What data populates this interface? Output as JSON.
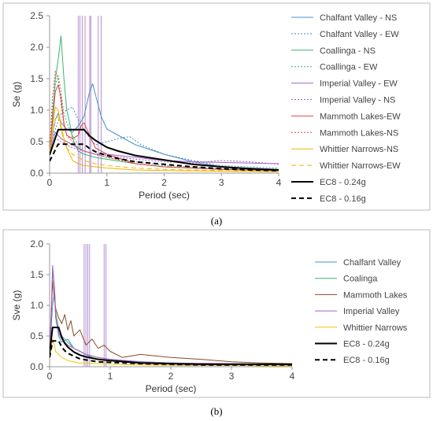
{
  "chart_data": [
    {
      "type": "line",
      "caption": "(a)",
      "xlabel": "Period (sec)",
      "ylabel": "Se (g)",
      "xlim": [
        0,
        4
      ],
      "ylim": [
        0,
        2.5
      ],
      "xticks": [
        "0",
        "1",
        "2",
        "3",
        "4"
      ],
      "yticks": [
        "0.0",
        "0.5",
        "1.0",
        "1.5",
        "2.0",
        "2.5"
      ],
      "grid": false,
      "legend_position": "right",
      "vertical_markers": [
        0.5,
        0.53,
        0.57,
        0.62,
        0.7,
        0.72,
        0.85,
        0.9
      ],
      "series": [
        {
          "name": "Chalfant Valley - NS",
          "color": "#4a90c8",
          "dash": "solid",
          "x": [
            0,
            0.05,
            0.1,
            0.15,
            0.2,
            0.3,
            0.4,
            0.5,
            0.6,
            0.7,
            0.75,
            0.8,
            0.9,
            1.0,
            1.2,
            1.5,
            2.0,
            2.5,
            3.0,
            3.5,
            4.0
          ],
          "y": [
            0.35,
            0.6,
            0.85,
            0.95,
            0.8,
            0.7,
            0.65,
            0.75,
            0.9,
            1.3,
            1.42,
            1.25,
            0.9,
            0.7,
            0.6,
            0.45,
            0.3,
            0.18,
            0.1,
            0.08,
            0.06
          ]
        },
        {
          "name": "Chalfant Valley - EW",
          "color": "#4a90c8",
          "dash": "dotted",
          "x": [
            0,
            0.05,
            0.1,
            0.2,
            0.3,
            0.4,
            0.5,
            0.6,
            0.7,
            0.8,
            1.0,
            1.2,
            1.4,
            1.6,
            2.0,
            2.5,
            3.0,
            3.5,
            4.0
          ],
          "y": [
            0.3,
            0.55,
            0.7,
            0.95,
            1.0,
            1.05,
            0.85,
            0.7,
            0.55,
            0.45,
            0.5,
            0.55,
            0.58,
            0.45,
            0.3,
            0.2,
            0.12,
            0.1,
            0.08
          ]
        },
        {
          "name": "Coallinga - NS",
          "color": "#3cb371",
          "dash": "solid",
          "x": [
            0,
            0.05,
            0.1,
            0.15,
            0.2,
            0.25,
            0.3,
            0.35,
            0.4,
            0.5,
            0.6,
            0.8,
            1.0,
            1.5,
            2.0,
            3.0,
            4.0
          ],
          "y": [
            0.3,
            0.9,
            1.5,
            1.8,
            2.18,
            1.5,
            1.0,
            0.8,
            0.55,
            0.35,
            0.3,
            0.25,
            0.22,
            0.15,
            0.1,
            0.06,
            0.04
          ]
        },
        {
          "name": "Coallinga - EW",
          "color": "#3cb371",
          "dash": "dotted",
          "x": [
            0,
            0.05,
            0.1,
            0.15,
            0.2,
            0.25,
            0.3,
            0.4,
            0.5,
            0.6,
            0.8,
            1.0,
            1.5,
            2.0,
            3.0,
            4.0
          ],
          "y": [
            0.3,
            1.0,
            1.4,
            1.55,
            1.3,
            0.95,
            0.8,
            0.6,
            0.45,
            0.35,
            0.3,
            0.25,
            0.18,
            0.12,
            0.07,
            0.05
          ]
        },
        {
          "name": "Imperial Valley - EW",
          "color": "#a560c8",
          "dash": "solid",
          "x": [
            0,
            0.05,
            0.1,
            0.2,
            0.3,
            0.4,
            0.5,
            0.6,
            0.8,
            1.0,
            1.5,
            2.0,
            2.5,
            3.0,
            3.5,
            4.0
          ],
          "y": [
            0.3,
            0.5,
            0.65,
            0.55,
            0.5,
            0.45,
            0.4,
            0.35,
            0.3,
            0.3,
            0.25,
            0.2,
            0.18,
            0.17,
            0.16,
            0.15
          ]
        },
        {
          "name": "Imperial Valley - NS",
          "color": "#a560c8",
          "dash": "dotted",
          "x": [
            0,
            0.05,
            0.1,
            0.2,
            0.3,
            0.4,
            0.5,
            0.6,
            0.8,
            1.0,
            1.5,
            2.0,
            2.5,
            3.0,
            3.5,
            4.0
          ],
          "y": [
            0.3,
            0.45,
            0.55,
            0.5,
            0.45,
            0.4,
            0.38,
            0.35,
            0.3,
            0.28,
            0.22,
            0.18,
            0.16,
            0.2,
            0.18,
            0.14
          ]
        },
        {
          "name": "Mammoth Lakes-EW",
          "color": "#e04848",
          "dash": "solid",
          "x": [
            0,
            0.05,
            0.1,
            0.15,
            0.2,
            0.25,
            0.3,
            0.4,
            0.5,
            0.55,
            0.6,
            0.7,
            0.8,
            1.0,
            1.5,
            2.0,
            3.0,
            4.0
          ],
          "y": [
            0.3,
            0.8,
            1.3,
            1.4,
            1.2,
            0.8,
            0.6,
            0.55,
            0.6,
            0.75,
            0.8,
            0.6,
            0.4,
            0.3,
            0.15,
            0.1,
            0.06,
            0.04
          ]
        },
        {
          "name": "Mammoth Lakes-NS",
          "color": "#e04848",
          "dash": "dotted",
          "x": [
            0,
            0.05,
            0.1,
            0.15,
            0.2,
            0.25,
            0.3,
            0.4,
            0.5,
            0.6,
            0.8,
            1.0,
            1.5,
            2.0,
            3.0,
            4.0
          ],
          "y": [
            0.35,
            1.2,
            1.62,
            1.5,
            1.1,
            0.75,
            0.6,
            0.5,
            0.4,
            0.35,
            0.3,
            0.25,
            0.15,
            0.1,
            0.06,
            0.04
          ]
        },
        {
          "name": "Whittier Narrows-NS",
          "color": "#f0b400",
          "dash": "solid",
          "x": [
            0,
            0.05,
            0.1,
            0.15,
            0.2,
            0.25,
            0.3,
            0.35,
            0.4,
            0.5,
            0.6,
            0.8,
            1.0,
            1.5,
            2.0,
            3.0,
            4.0
          ],
          "y": [
            0.3,
            0.7,
            1.05,
            1.0,
            0.75,
            0.55,
            0.4,
            0.3,
            0.2,
            0.15,
            0.12,
            0.1,
            0.08,
            0.05,
            0.04,
            0.03,
            0.02
          ]
        },
        {
          "name": "Whittier Narrows-EW",
          "color": "#f0b400",
          "dash": "dashed",
          "x": [
            0,
            0.05,
            0.1,
            0.15,
            0.2,
            0.25,
            0.3,
            0.4,
            0.5,
            0.6,
            0.8,
            1.0,
            1.5,
            2.0,
            3.0,
            4.0
          ],
          "y": [
            0.3,
            0.6,
            0.85,
            0.9,
            0.7,
            0.5,
            0.4,
            0.3,
            0.25,
            0.2,
            0.15,
            0.12,
            0.08,
            0.06,
            0.04,
            0.03
          ]
        },
        {
          "name": "EC8 - 0.24g",
          "color": "#000000",
          "dash": "solid",
          "bold": true,
          "x": [
            0,
            0.15,
            0.2,
            0.3,
            0.4,
            0.5,
            0.6,
            0.7,
            0.8,
            1.0,
            1.2,
            1.5,
            2.0,
            2.5,
            3.0,
            3.5,
            4.0
          ],
          "y": [
            0.29,
            0.69,
            0.69,
            0.69,
            0.69,
            0.69,
            0.69,
            0.59,
            0.52,
            0.41,
            0.35,
            0.28,
            0.21,
            0.14,
            0.1,
            0.07,
            0.05
          ]
        },
        {
          "name": "EC8 - 0.16g",
          "color": "#000000",
          "dash": "dashed",
          "bold": true,
          "x": [
            0,
            0.15,
            0.2,
            0.3,
            0.4,
            0.5,
            0.6,
            0.7,
            0.8,
            1.0,
            1.2,
            1.5,
            2.0,
            2.5,
            3.0,
            3.5,
            4.0
          ],
          "y": [
            0.19,
            0.46,
            0.46,
            0.46,
            0.46,
            0.46,
            0.46,
            0.39,
            0.34,
            0.28,
            0.23,
            0.18,
            0.14,
            0.1,
            0.07,
            0.05,
            0.04
          ]
        }
      ]
    },
    {
      "type": "line",
      "caption": "(b)",
      "xlabel": "Period (sec)",
      "ylabel": "Sve (g)",
      "xlim": [
        0,
        4
      ],
      "ylim": [
        0,
        2.0
      ],
      "xticks": [
        "0",
        "1",
        "2",
        "3",
        "4"
      ],
      "yticks": [
        "0.0",
        "0.5",
        "1.0",
        "1.5",
        "2.0"
      ],
      "grid": false,
      "legend_position": "right",
      "vertical_markers": [
        0.57,
        0.6,
        0.63,
        0.66,
        0.9,
        0.93
      ],
      "series": [
        {
          "name": "Chalfant Valley",
          "color": "#4a90c8",
          "dash": "solid",
          "x": [
            0,
            0.03,
            0.05,
            0.08,
            0.1,
            0.15,
            0.2,
            0.3,
            0.4,
            0.5,
            0.6,
            0.7,
            0.8,
            1.0,
            1.5,
            2.0,
            3.0,
            4.0
          ],
          "y": [
            0.2,
            0.7,
            1.0,
            1.2,
            0.8,
            0.5,
            0.4,
            0.45,
            0.3,
            0.25,
            0.2,
            0.15,
            0.12,
            0.1,
            0.08,
            0.06,
            0.04,
            0.03
          ]
        },
        {
          "name": "Coalinga",
          "color": "#3cb371",
          "dash": "solid",
          "x": [
            0,
            0.03,
            0.05,
            0.08,
            0.1,
            0.15,
            0.2,
            0.3,
            0.4,
            0.5,
            0.6,
            0.8,
            1.0,
            1.5,
            2.0,
            3.0,
            4.0
          ],
          "y": [
            0.2,
            0.9,
            1.55,
            1.3,
            0.9,
            0.6,
            0.5,
            0.4,
            0.3,
            0.25,
            0.2,
            0.15,
            0.12,
            0.08,
            0.06,
            0.04,
            0.03
          ]
        },
        {
          "name": "Mammoth Lakes",
          "color": "#8b4a2a",
          "dash": "solid",
          "x": [
            0,
            0.03,
            0.05,
            0.08,
            0.1,
            0.15,
            0.2,
            0.25,
            0.3,
            0.35,
            0.4,
            0.5,
            0.6,
            0.7,
            0.8,
            0.9,
            1.0,
            1.2,
            1.5,
            2.0,
            2.5,
            3.0,
            3.5,
            4.0
          ],
          "y": [
            0.2,
            0.9,
            1.4,
            1.1,
            0.95,
            0.8,
            0.7,
            0.85,
            0.6,
            0.75,
            0.5,
            0.6,
            0.35,
            0.45,
            0.3,
            0.35,
            0.25,
            0.15,
            0.2,
            0.15,
            0.12,
            0.08,
            0.06,
            0.05
          ]
        },
        {
          "name": "Imperial Valley",
          "color": "#a560c8",
          "dash": "solid",
          "x": [
            0,
            0.03,
            0.05,
            0.08,
            0.1,
            0.15,
            0.2,
            0.3,
            0.4,
            0.5,
            0.6,
            0.8,
            1.0,
            1.5,
            2.0,
            3.0,
            4.0
          ],
          "y": [
            0.2,
            1.0,
            1.65,
            1.3,
            0.8,
            0.55,
            0.45,
            0.35,
            0.3,
            0.25,
            0.2,
            0.15,
            0.12,
            0.08,
            0.06,
            0.05,
            0.04
          ]
        },
        {
          "name": "Whittier Narrows",
          "color": "#f0c800",
          "dash": "solid",
          "x": [
            0,
            0.03,
            0.05,
            0.08,
            0.1,
            0.15,
            0.2,
            0.3,
            0.4,
            0.5,
            0.8,
            1.0,
            1.5,
            2.0,
            3.0,
            4.0
          ],
          "y": [
            0.15,
            0.3,
            0.45,
            0.35,
            0.25,
            0.2,
            0.15,
            0.1,
            0.08,
            0.06,
            0.05,
            0.04,
            0.03,
            0.02,
            0.02,
            0.01
          ]
        },
        {
          "name": "EC8 - 0.24g",
          "color": "#000000",
          "dash": "solid",
          "bold": true,
          "x": [
            0,
            0.05,
            0.15,
            0.2,
            0.25,
            0.3,
            0.4,
            0.5,
            0.6,
            0.8,
            1.0,
            1.5,
            2.0,
            2.5,
            3.0,
            3.5,
            4.0
          ],
          "y": [
            0.22,
            0.64,
            0.64,
            0.48,
            0.38,
            0.32,
            0.24,
            0.19,
            0.16,
            0.12,
            0.1,
            0.06,
            0.05,
            0.04,
            0.04,
            0.04,
            0.04
          ]
        },
        {
          "name": "EC8 - 0.16g",
          "color": "#000000",
          "dash": "dashed",
          "bold": true,
          "x": [
            0,
            0.05,
            0.15,
            0.2,
            0.25,
            0.3,
            0.4,
            0.5,
            0.6,
            0.8,
            1.0,
            1.5,
            2.0,
            2.5,
            3.0,
            3.5,
            4.0
          ],
          "y": [
            0.15,
            0.42,
            0.42,
            0.32,
            0.26,
            0.22,
            0.17,
            0.13,
            0.11,
            0.08,
            0.07,
            0.05,
            0.04,
            0.03,
            0.03,
            0.03,
            0.03
          ]
        }
      ]
    }
  ]
}
